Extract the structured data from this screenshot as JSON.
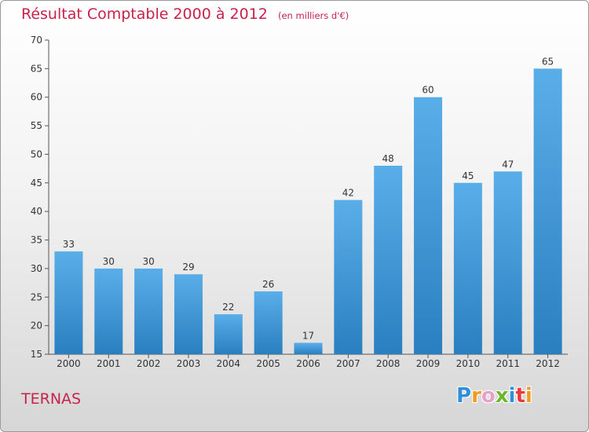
{
  "title": "Résultat Comptable 2000 à 2012",
  "subtitle": "(en milliers d'€)",
  "commune": "TERNAS",
  "logo": {
    "text": "Proxiti",
    "letters": [
      {
        "ch": "P",
        "color": "#2f8fd8"
      },
      {
        "ch": "r",
        "color": "#f39a1e"
      },
      {
        "ch": "o",
        "color": "#e8a0c8"
      },
      {
        "ch": "x",
        "color": "#6ab82a"
      },
      {
        "ch": "i",
        "color": "#2f8fd8"
      },
      {
        "ch": "t",
        "color": "#e83a3a"
      },
      {
        "ch": "i",
        "color": "#f39a1e"
      }
    ]
  },
  "chart_data": {
    "type": "bar",
    "title": "Résultat Comptable 2000 à 2012",
    "subtitle": "(en milliers d'€)",
    "xlabel": "",
    "ylabel": "",
    "categories": [
      "2000",
      "2001",
      "2002",
      "2003",
      "2004",
      "2005",
      "2006",
      "2007",
      "2008",
      "2009",
      "2010",
      "2011",
      "2012"
    ],
    "values": [
      33,
      30,
      30,
      29,
      22,
      26,
      17,
      42,
      48,
      60,
      45,
      47,
      65
    ],
    "ylim": [
      15,
      70
    ],
    "yticks": [
      15,
      20,
      25,
      30,
      35,
      40,
      45,
      50,
      55,
      60,
      65,
      70
    ],
    "grid": false,
    "bar_color_top": "#5aaee8",
    "bar_color_bottom": "#2a7fc0"
  }
}
